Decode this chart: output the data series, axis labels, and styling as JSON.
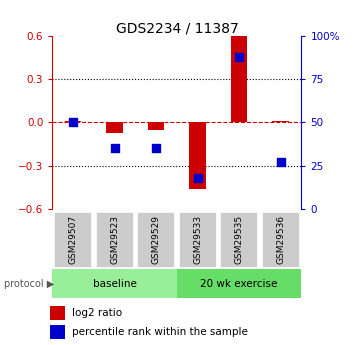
{
  "title": "GDS2234 / 11387",
  "samples": [
    "GSM29507",
    "GSM29523",
    "GSM29529",
    "GSM29533",
    "GSM29535",
    "GSM29536"
  ],
  "log2_ratio": [
    0.01,
    -0.07,
    -0.05,
    -0.46,
    0.6,
    0.01
  ],
  "percentile_rank": [
    50,
    35,
    35,
    18,
    88,
    27
  ],
  "groups": [
    {
      "label": "baseline",
      "color": "#99ee99",
      "start": 0,
      "end": 2
    },
    {
      "label": "20 wk exercise",
      "color": "#66dd66",
      "start": 3,
      "end": 5
    }
  ],
  "ylim": [
    -0.6,
    0.6
  ],
  "yticks_left": [
    -0.6,
    -0.3,
    0.0,
    0.3,
    0.6
  ],
  "right_labels": [
    "0",
    "25",
    "50",
    "75",
    "100%"
  ],
  "bar_color": "#cc0000",
  "dot_color": "#0000cc",
  "zero_line_color": "#cc0000",
  "hline_color": "#000000",
  "bg_color": "#ffffff",
  "bar_width": 0.4,
  "dot_size": 30,
  "label_color_left": "#cc0000",
  "label_color_right": "#0000cc",
  "sample_box_color": "#cccccc",
  "title_fontsize": 10,
  "tick_fontsize": 7.5,
  "legend_fontsize": 7.5,
  "proto_fontsize": 7.5,
  "proto_label": "protocol",
  "legend_items": [
    "log2 ratio",
    "percentile rank within the sample"
  ]
}
